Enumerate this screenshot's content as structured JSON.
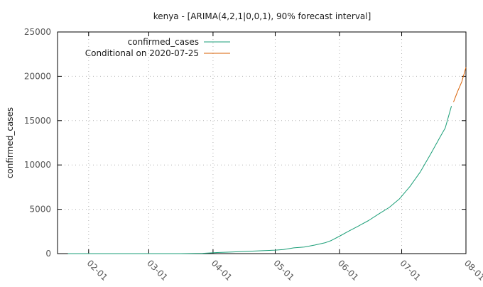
{
  "chart_data": {
    "type": "line",
    "title": "kenya -  [ARIMA(4,2,1|0,0,1), 90% forecast interval]",
    "xlabel": "",
    "ylabel": "confirmed_cases",
    "x_axis": {
      "type": "date",
      "range": [
        "2020-01-17",
        "2020-08-01"
      ],
      "tick_values": [
        "2020-02-01",
        "2020-03-01",
        "2020-04-01",
        "2020-05-01",
        "2020-06-01",
        "2020-07-01",
        "2020-08-01"
      ],
      "tick_labels": [
        "02-01",
        "03-01",
        "04-01",
        "05-01",
        "06-01",
        "07-01",
        "08-01"
      ]
    },
    "y_axis": {
      "range": [
        0,
        25000
      ],
      "tick_values": [
        0,
        5000,
        10000,
        15000,
        20000,
        25000
      ],
      "tick_labels": [
        "0",
        "5000",
        "10000",
        "15000",
        "20000",
        "25000"
      ]
    },
    "grid": true,
    "legend_position": "top-left",
    "series": [
      {
        "name": "confirmed_cases",
        "color": "#1a9e77",
        "points": [
          [
            "2020-01-22",
            0
          ],
          [
            "2020-02-15",
            0
          ],
          [
            "2020-03-13",
            1
          ],
          [
            "2020-03-20",
            7
          ],
          [
            "2020-03-27",
            31
          ],
          [
            "2020-04-03",
            122
          ],
          [
            "2020-04-10",
            184
          ],
          [
            "2020-04-17",
            246
          ],
          [
            "2020-04-24",
            320
          ],
          [
            "2020-05-01",
            396
          ],
          [
            "2020-05-05",
            465
          ],
          [
            "2020-05-10",
            649
          ],
          [
            "2020-05-15",
            737
          ],
          [
            "2020-05-20",
            963
          ],
          [
            "2020-05-25",
            1214
          ],
          [
            "2020-05-28",
            1471
          ],
          [
            "2020-06-01",
            1962
          ],
          [
            "2020-06-05",
            2474
          ],
          [
            "2020-06-10",
            3094
          ],
          [
            "2020-06-15",
            3727
          ],
          [
            "2020-06-20",
            4478
          ],
          [
            "2020-06-25",
            5206
          ],
          [
            "2020-06-30",
            6190
          ],
          [
            "2020-07-05",
            7577
          ],
          [
            "2020-07-10",
            9226
          ],
          [
            "2020-07-15",
            11252
          ],
          [
            "2020-07-20",
            13353
          ],
          [
            "2020-07-22",
            14168
          ],
          [
            "2020-07-25",
            16643
          ]
        ]
      },
      {
        "name": "Conditional on 2020-07-25",
        "color": "#d95f02",
        "points": [
          [
            "2020-07-26",
            17100
          ],
          [
            "2020-07-28",
            18300
          ],
          [
            "2020-07-30",
            19400
          ],
          [
            "2020-08-01",
            21000
          ]
        ]
      }
    ]
  }
}
